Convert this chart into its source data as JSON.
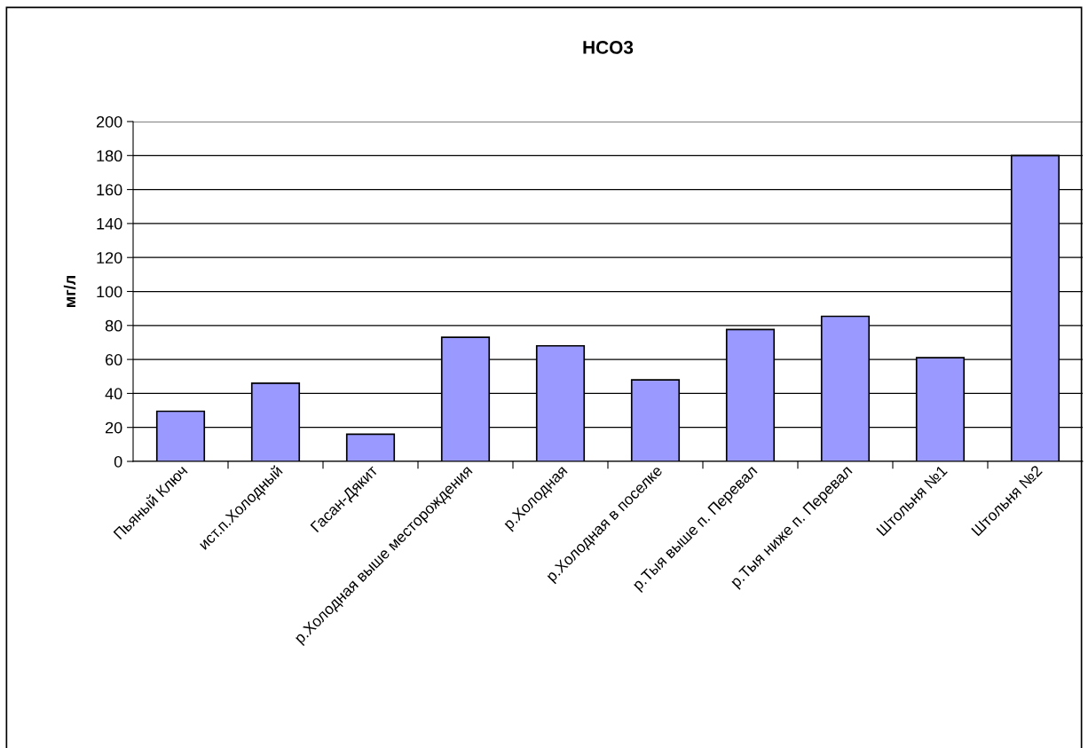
{
  "chart_data": {
    "type": "bar",
    "title": "HCO3",
    "ylabel": "мг/л",
    "categories": [
      "Пьяный Ключ",
      "ист.п.Холодный",
      "Гасан-Дякит",
      "р.Холодная выше месторождения",
      "р.Холодная",
      "р.Холодная в поселке",
      "р.Тыя выше п. Перевал",
      "р.Тыя ниже п. Перевал",
      "Штольня №1",
      "Штольня №2"
    ],
    "values": [
      29.5,
      46,
      16,
      73,
      68,
      48,
      77.6,
      85.4,
      61,
      180
    ],
    "color": "#9999ff",
    "ylim": [
      0,
      200
    ],
    "yticks": [
      0,
      20,
      40,
      60,
      80,
      100,
      120,
      140,
      160,
      180,
      200
    ],
    "grid": "y",
    "legend": false
  }
}
